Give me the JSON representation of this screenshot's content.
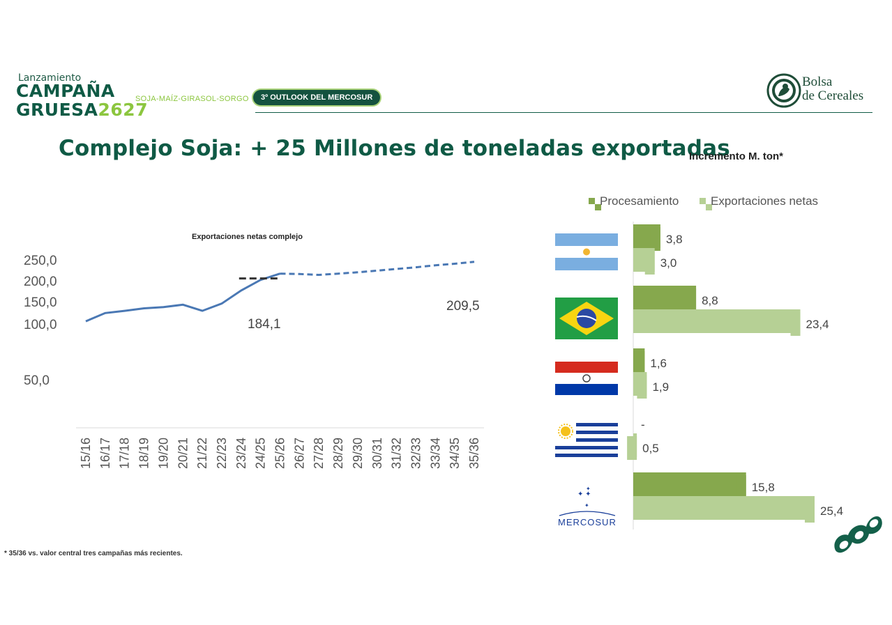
{
  "header": {
    "brand_top": "Lanzamiento",
    "brand_main1": "CAMPAÑA",
    "brand_main2": "GRUESA",
    "brand_year": "2627",
    "crops": "SOJA-MAÍZ-GIRASOL-SORGO",
    "outlook": "3º OUTLOOK DEL MERCOSUR",
    "org_line1": "Bolsa",
    "org_line2": "de Cereales"
  },
  "page_title": "Complejo Soja: + 25 Millones de toneladas exportadas",
  "right_title": "Incremento M. ton*",
  "footnote": "* 35/36 vs. valor central tres campañas más recientes.",
  "colors": {
    "brand_green": "#0f5a45",
    "line_blue": "#4a78b4",
    "dark_dash": "#333333",
    "procesamiento": "#86a84d",
    "exportaciones": "#b6d095"
  },
  "icons": [
    "flag-argentina-icon",
    "flag-brazil-icon",
    "flag-paraguay-icon",
    "flag-uruguay-icon",
    "mercosur-logo-icon",
    "bolsa-seal-icon",
    "soybean-logo-icon"
  ],
  "chart_data": [
    {
      "type": "line",
      "title": "Exportaciones netas complejo",
      "x": [
        "15/16",
        "16/17",
        "17/18",
        "18/19",
        "19/20",
        "20/21",
        "21/22",
        "22/23",
        "23/24",
        "24/25",
        "25/26",
        "26/27",
        "27/28",
        "28/29",
        "29/30",
        "30/31",
        "31/32",
        "32/33",
        "33/34",
        "34/35",
        "35/36"
      ],
      "series": [
        {
          "style": "solid",
          "values": [
            105,
            122,
            127,
            133,
            136,
            142,
            127,
            145,
            175,
            202,
            216,
            null,
            null,
            null,
            null,
            null,
            null,
            null,
            null,
            null,
            null
          ]
        },
        {
          "style": "dashed",
          "values": [
            null,
            null,
            null,
            null,
            null,
            null,
            null,
            null,
            null,
            null,
            216,
            215,
            213,
            216,
            219,
            223,
            227,
            231,
            236,
            240,
            245
          ]
        },
        {
          "style": "dashed-reference",
          "values": [
            null,
            null,
            null,
            null,
            null,
            null,
            null,
            null,
            205,
            205,
            205,
            null,
            null,
            null,
            null,
            null,
            null,
            null,
            null,
            null,
            null
          ]
        }
      ],
      "yticks": [
        "250,0",
        "200,0",
        "150,0",
        "100,0",
        "50,0"
      ],
      "annotations": [
        "184,1",
        "209,5"
      ]
    },
    {
      "type": "bar",
      "orientation": "horizontal",
      "categories": [
        "Argentina",
        "Brasil",
        "Paraguay",
        "Uruguay",
        "MERCOSUR"
      ],
      "series": [
        {
          "name": "Procesamiento",
          "values": [
            3.8,
            8.8,
            1.6,
            0,
            15.8
          ],
          "labels": [
            "3,8",
            "8,8",
            "1,6",
            "-",
            "15,8"
          ]
        },
        {
          "name": "Exportaciones netas",
          "values": [
            3.0,
            23.4,
            1.9,
            0.5,
            25.4
          ],
          "labels": [
            "3,0",
            "23,4",
            "1,9",
            "0,5",
            "25,4"
          ]
        }
      ],
      "legend_position": "top"
    }
  ]
}
